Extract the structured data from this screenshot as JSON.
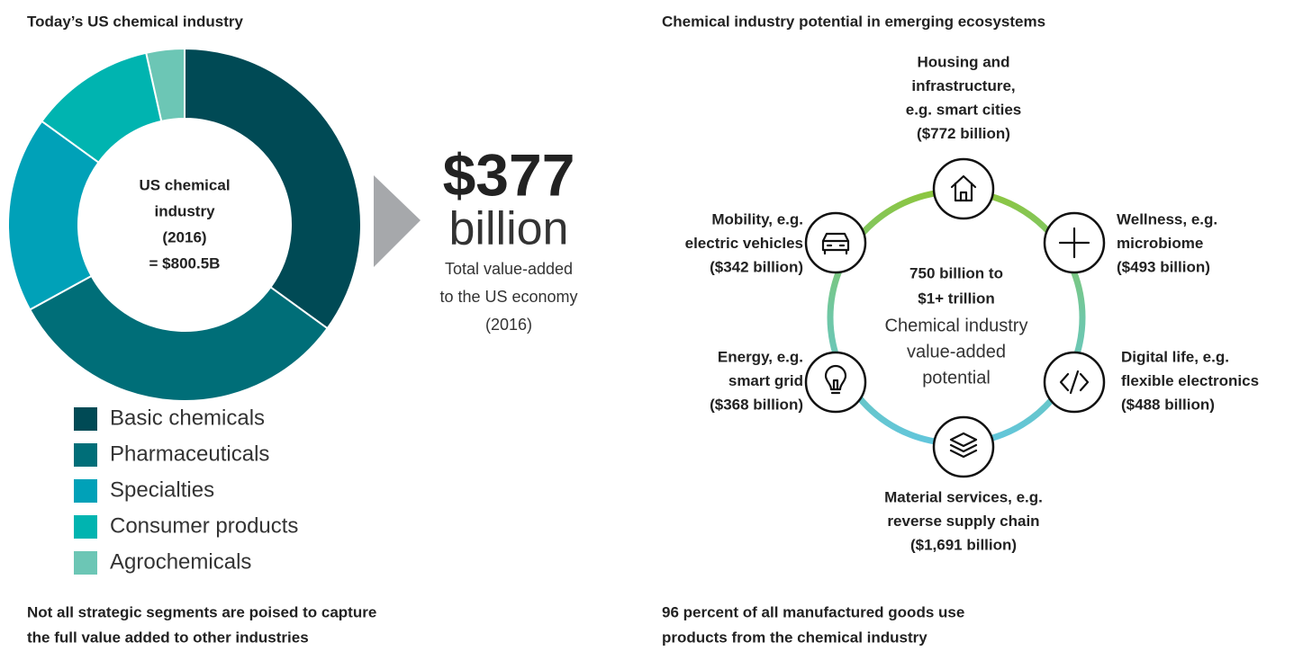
{
  "chart_data": {
    "type": "donut",
    "title": "Today’s US chemical industry",
    "center_label": [
      "US chemical",
      "industry",
      "(2016)",
      "= $800.5B"
    ],
    "categories": [
      "Basic chemicals",
      "Pharmaceuticals",
      "Specialties",
      "Consumer products",
      "Agrochemicals"
    ],
    "values": [
      35,
      32,
      18,
      11.5,
      3.5
    ],
    "colors": [
      "#004a55",
      "#006e78",
      "#00a1b8",
      "#00b4b0",
      "#6cc6b5"
    ]
  },
  "callout": {
    "value": "$377",
    "unit": "billion",
    "caption": [
      "Total value-added",
      "to the US economy",
      "(2016)"
    ]
  },
  "ecosystems": {
    "title": "Chemical industry potential in emerging ecosystems",
    "center": {
      "headline": [
        "750 billion to",
        "$1+ trillion"
      ],
      "caption": [
        "Chemical industry",
        "value-added",
        "potential"
      ]
    },
    "nodes": [
      {
        "lines": [
          "Housing and",
          "infrastructure,",
          "e.g. smart cities",
          "($772 billion)"
        ]
      },
      {
        "lines": [
          "Wellness, e.g.",
          "microbiome",
          "($493 billion)"
        ]
      },
      {
        "lines": [
          "Digital life, e.g.",
          "flexible electronics",
          "($488  billion)"
        ]
      },
      {
        "lines": [
          "Material services, e.g.",
          "reverse supply chain",
          "($1,691 billion)"
        ]
      },
      {
        "lines": [
          "Energy, e.g.",
          "smart grid",
          "($368 billion)"
        ]
      },
      {
        "lines": [
          "Mobility, e.g.",
          "electric vehicles",
          "($342 billion)"
        ]
      }
    ]
  },
  "footnotes": [
    [
      "Not all strategic segments are poised to capture",
      "the full value added to other industries"
    ],
    [
      "96 percent of all manufactured goods use",
      "products from the chemical industry"
    ]
  ]
}
